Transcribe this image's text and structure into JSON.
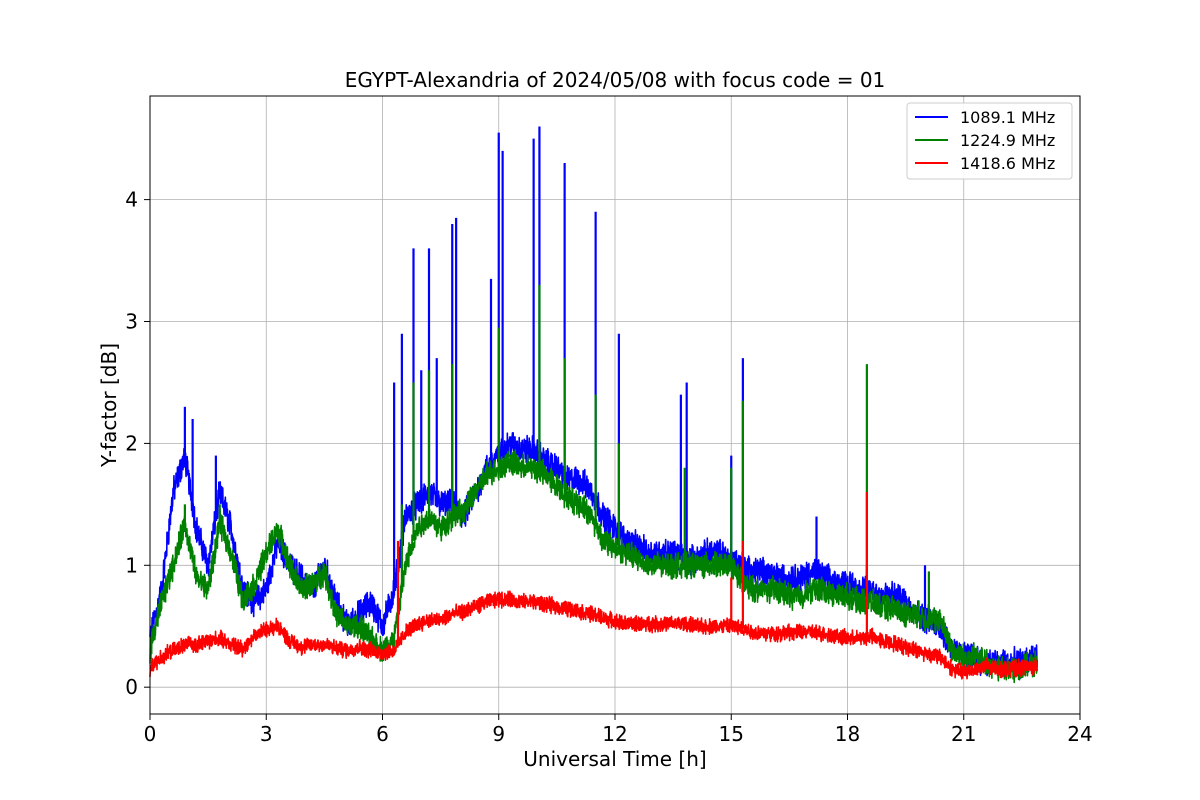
{
  "chart_data": {
    "type": "line",
    "title": "EGYPT-Alexandria of 2024/05/08 with focus code = 01",
    "xlabel": "Universal Time [h]",
    "ylabel": "Y-factor [dB]",
    "xlim": [
      0,
      24
    ],
    "ylim": [
      -0.22,
      4.85
    ],
    "xticks": [
      0,
      3,
      6,
      9,
      12,
      15,
      18,
      21,
      24
    ],
    "yticks": [
      0,
      1,
      2,
      3,
      4
    ],
    "grid": true,
    "legend_position": "top-right",
    "series": [
      {
        "name": "1089.1 MHz",
        "color": "#0000ff",
        "x": [
          0.0,
          0.3,
          0.6,
          0.9,
          1.2,
          1.5,
          1.8,
          2.1,
          2.4,
          2.7,
          3.0,
          3.3,
          3.6,
          3.9,
          4.2,
          4.5,
          4.8,
          5.1,
          5.4,
          5.7,
          6.0,
          6.3,
          6.6,
          6.9,
          7.2,
          7.5,
          7.8,
          8.1,
          8.4,
          8.7,
          9.0,
          9.3,
          9.6,
          9.9,
          10.2,
          10.5,
          10.8,
          11.1,
          11.4,
          11.7,
          12.0,
          12.3,
          12.6,
          12.9,
          13.2,
          13.5,
          13.8,
          14.1,
          14.4,
          14.7,
          15.0,
          15.3,
          15.6,
          15.9,
          16.2,
          16.5,
          16.8,
          17.1,
          17.4,
          17.7,
          18.0,
          18.3,
          18.6,
          18.9,
          19.2,
          19.5,
          19.8,
          20.1,
          20.4,
          20.7,
          21.0,
          21.3,
          21.6,
          21.9,
          22.2,
          22.5,
          22.9
        ],
        "y": [
          0.4,
          0.8,
          1.6,
          1.9,
          1.3,
          1.0,
          1.6,
          1.3,
          0.8,
          0.7,
          0.8,
          1.2,
          1.0,
          0.9,
          0.8,
          1.0,
          0.7,
          0.5,
          0.6,
          0.7,
          0.5,
          0.8,
          1.4,
          1.5,
          1.6,
          1.5,
          1.5,
          1.4,
          1.6,
          1.8,
          1.9,
          2.0,
          1.95,
          1.95,
          1.85,
          1.8,
          1.7,
          1.7,
          1.6,
          1.4,
          1.3,
          1.2,
          1.15,
          1.1,
          1.1,
          1.1,
          1.05,
          1.05,
          1.1,
          1.1,
          1.05,
          1.0,
          0.95,
          0.95,
          0.9,
          0.9,
          0.9,
          0.95,
          0.9,
          0.85,
          0.85,
          0.8,
          0.8,
          0.75,
          0.75,
          0.7,
          0.6,
          0.55,
          0.5,
          0.3,
          0.25,
          0.25,
          0.2,
          0.2,
          0.2,
          0.2,
          0.25
        ],
        "spikes": [
          [
            0.9,
            2.3
          ],
          [
            1.1,
            2.2
          ],
          [
            1.7,
            1.9
          ],
          [
            6.3,
            2.5
          ],
          [
            6.5,
            2.9
          ],
          [
            6.8,
            3.6
          ],
          [
            7.0,
            2.6
          ],
          [
            7.2,
            3.6
          ],
          [
            7.4,
            2.7
          ],
          [
            7.8,
            3.8
          ],
          [
            7.9,
            3.85
          ],
          [
            8.8,
            3.35
          ],
          [
            9.0,
            4.55
          ],
          [
            9.1,
            4.4
          ],
          [
            9.9,
            4.5
          ],
          [
            10.05,
            4.6
          ],
          [
            10.7,
            4.3
          ],
          [
            11.5,
            3.9
          ],
          [
            12.1,
            2.9
          ],
          [
            13.7,
            2.4
          ],
          [
            13.85,
            2.5
          ],
          [
            15.0,
            1.9
          ],
          [
            15.3,
            2.7
          ],
          [
            17.2,
            1.4
          ],
          [
            18.5,
            1.0
          ],
          [
            20.0,
            1.0
          ]
        ]
      },
      {
        "name": "1224.9 MHz",
        "color": "#008000",
        "x": [
          0.0,
          0.3,
          0.6,
          0.9,
          1.2,
          1.5,
          1.8,
          2.1,
          2.4,
          2.7,
          3.0,
          3.3,
          3.6,
          3.9,
          4.2,
          4.5,
          4.8,
          5.1,
          5.4,
          5.7,
          6.0,
          6.3,
          6.6,
          6.9,
          7.2,
          7.5,
          7.8,
          8.1,
          8.4,
          8.7,
          9.0,
          9.3,
          9.6,
          9.9,
          10.2,
          10.5,
          10.8,
          11.1,
          11.4,
          11.7,
          12.0,
          12.3,
          12.6,
          12.9,
          13.2,
          13.5,
          13.8,
          14.1,
          14.4,
          14.7,
          15.0,
          15.3,
          15.6,
          15.9,
          16.2,
          16.5,
          16.8,
          17.1,
          17.4,
          17.7,
          18.0,
          18.3,
          18.6,
          18.9,
          19.2,
          19.5,
          19.8,
          20.1,
          20.4,
          20.7,
          21.0,
          21.3,
          21.6,
          21.9,
          22.2,
          22.5,
          22.9
        ],
        "y": [
          0.3,
          0.7,
          1.0,
          1.35,
          0.9,
          0.8,
          1.35,
          1.1,
          0.7,
          0.85,
          1.1,
          1.3,
          1.0,
          0.8,
          0.85,
          0.95,
          0.6,
          0.5,
          0.5,
          0.4,
          0.3,
          0.4,
          1.0,
          1.3,
          1.4,
          1.3,
          1.4,
          1.45,
          1.6,
          1.75,
          1.8,
          1.85,
          1.8,
          1.8,
          1.75,
          1.65,
          1.55,
          1.5,
          1.4,
          1.2,
          1.15,
          1.1,
          1.05,
          1.0,
          1.0,
          1.0,
          1.0,
          1.0,
          1.0,
          1.0,
          1.0,
          0.85,
          0.8,
          0.8,
          0.8,
          0.75,
          0.75,
          0.8,
          0.8,
          0.75,
          0.75,
          0.7,
          0.7,
          0.65,
          0.65,
          0.6,
          0.6,
          0.55,
          0.55,
          0.3,
          0.25,
          0.25,
          0.2,
          0.15,
          0.15,
          0.15,
          0.2
        ],
        "spikes": [
          [
            0.9,
            1.5
          ],
          [
            1.8,
            1.5
          ],
          [
            6.5,
            1.5
          ],
          [
            6.8,
            2.5
          ],
          [
            7.2,
            2.6
          ],
          [
            7.8,
            2.65
          ],
          [
            9.0,
            2.95
          ],
          [
            10.05,
            3.3
          ],
          [
            10.7,
            2.7
          ],
          [
            11.5,
            2.4
          ],
          [
            12.1,
            2.0
          ],
          [
            13.8,
            1.8
          ],
          [
            15.0,
            1.8
          ],
          [
            15.3,
            2.35
          ],
          [
            18.5,
            2.65
          ],
          [
            20.1,
            0.95
          ]
        ]
      },
      {
        "name": "1418.6 MHz",
        "color": "#ff0000",
        "x": [
          0.0,
          0.3,
          0.6,
          0.9,
          1.2,
          1.5,
          1.8,
          2.1,
          2.4,
          2.7,
          3.0,
          3.3,
          3.6,
          3.9,
          4.2,
          4.5,
          4.8,
          5.1,
          5.4,
          5.7,
          6.0,
          6.3,
          6.6,
          6.9,
          7.2,
          7.5,
          7.8,
          8.1,
          8.4,
          8.7,
          9.0,
          9.3,
          9.6,
          9.9,
          10.2,
          10.5,
          10.8,
          11.1,
          11.4,
          11.7,
          12.0,
          12.3,
          12.6,
          12.9,
          13.2,
          13.5,
          13.8,
          14.1,
          14.4,
          14.7,
          15.0,
          15.3,
          15.6,
          15.9,
          16.2,
          16.5,
          16.8,
          17.1,
          17.4,
          17.7,
          18.0,
          18.3,
          18.6,
          18.9,
          19.2,
          19.5,
          19.8,
          20.1,
          20.4,
          20.7,
          21.0,
          21.3,
          21.6,
          21.9,
          22.2,
          22.5,
          22.9
        ],
        "y": [
          0.15,
          0.25,
          0.3,
          0.35,
          0.35,
          0.38,
          0.4,
          0.35,
          0.32,
          0.42,
          0.48,
          0.5,
          0.38,
          0.33,
          0.35,
          0.35,
          0.32,
          0.3,
          0.33,
          0.3,
          0.28,
          0.3,
          0.45,
          0.52,
          0.55,
          0.55,
          0.6,
          0.62,
          0.66,
          0.7,
          0.72,
          0.72,
          0.7,
          0.7,
          0.68,
          0.66,
          0.64,
          0.62,
          0.6,
          0.57,
          0.54,
          0.52,
          0.52,
          0.52,
          0.52,
          0.52,
          0.52,
          0.5,
          0.5,
          0.5,
          0.5,
          0.48,
          0.45,
          0.44,
          0.44,
          0.45,
          0.45,
          0.45,
          0.44,
          0.42,
          0.4,
          0.4,
          0.42,
          0.38,
          0.36,
          0.33,
          0.3,
          0.27,
          0.25,
          0.15,
          0.12,
          0.15,
          0.17,
          0.15,
          0.15,
          0.16,
          0.17
        ],
        "spikes": [
          [
            6.4,
            1.2
          ],
          [
            15.0,
            0.9
          ],
          [
            15.3,
            1.2
          ],
          [
            18.5,
            1.6
          ]
        ]
      }
    ]
  }
}
